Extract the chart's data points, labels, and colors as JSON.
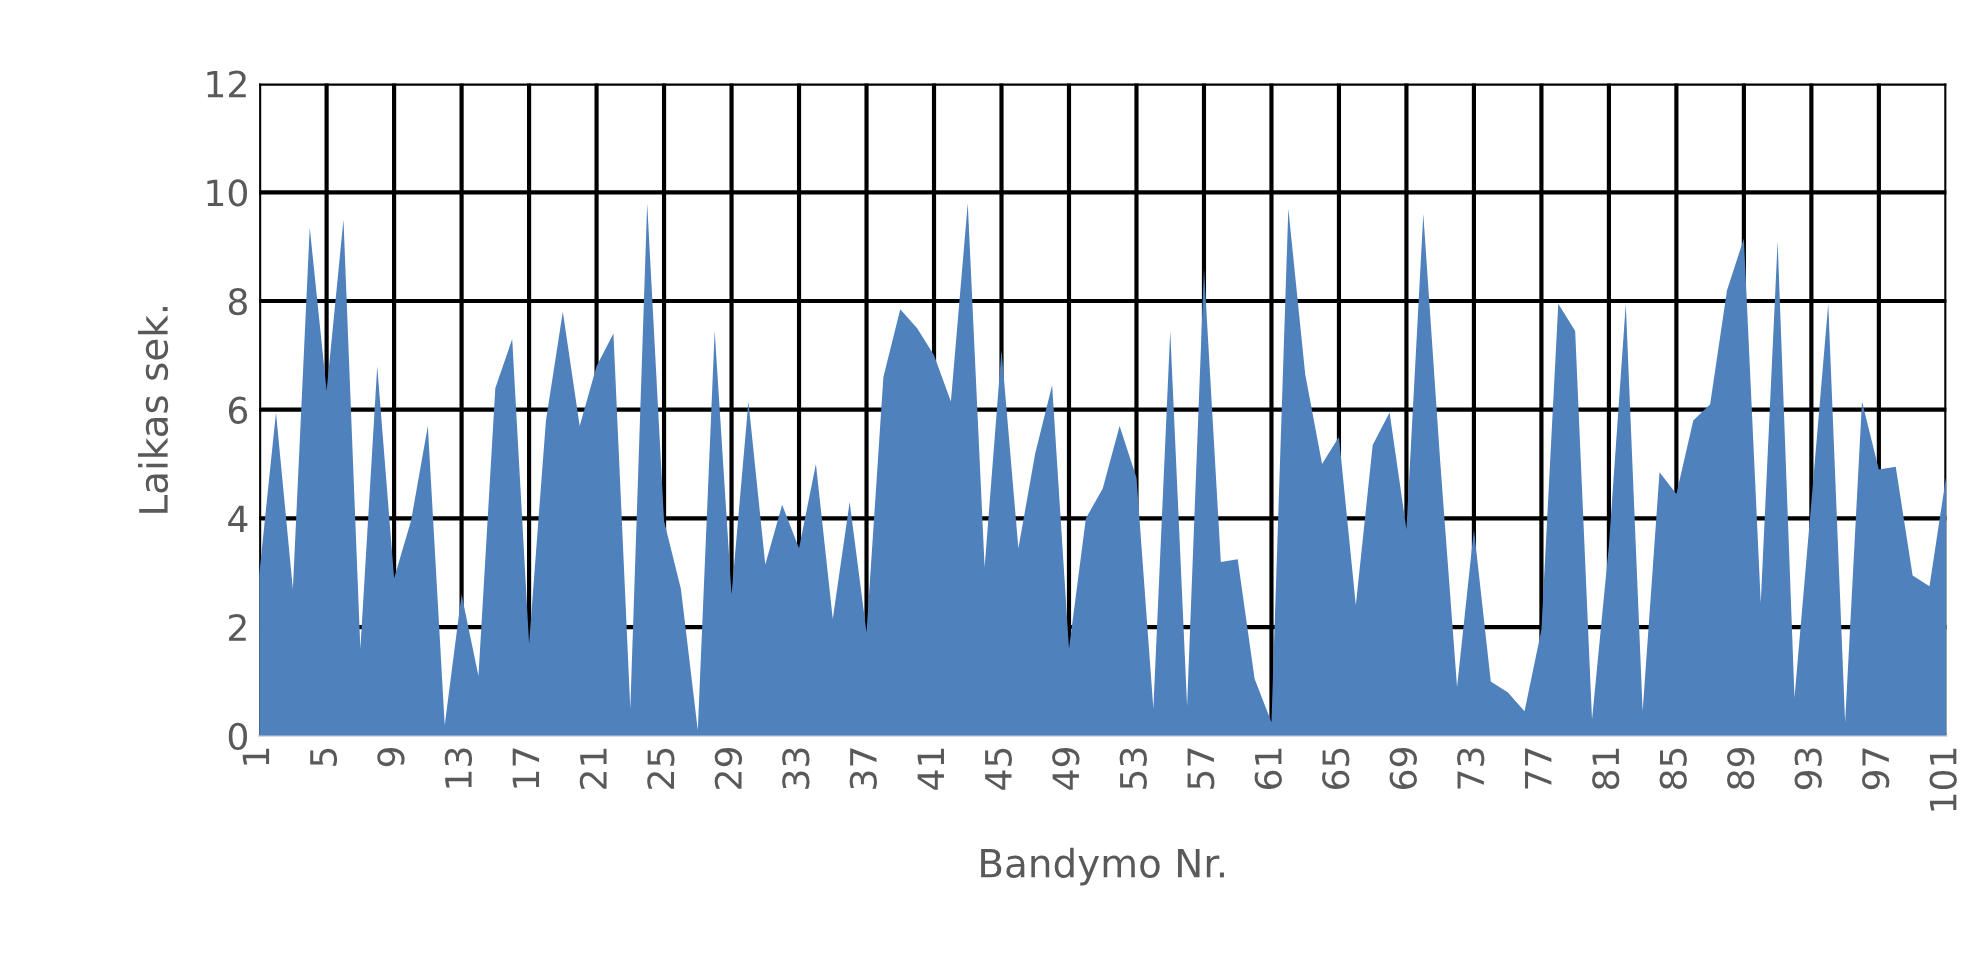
{
  "chart_data": {
    "type": "area",
    "xlabel": "Bandymo Nr.",
    "ylabel": "Laikas sek.",
    "categories": [
      "1",
      null,
      null,
      null,
      "5",
      null,
      null,
      null,
      "9",
      null,
      null,
      null,
      "13",
      null,
      null,
      null,
      "17",
      null,
      null,
      null,
      "21",
      null,
      null,
      null,
      "25",
      null,
      null,
      null,
      "29",
      null,
      null,
      null,
      "33",
      null,
      null,
      null,
      "37",
      null,
      null,
      null,
      "41",
      null,
      null,
      null,
      "45",
      null,
      null,
      null,
      "49",
      null,
      null,
      null,
      "53",
      null,
      null,
      null,
      "57",
      null,
      null,
      null,
      "61",
      null,
      null,
      null,
      "65",
      null,
      null,
      null,
      "69",
      null,
      null,
      null,
      "73",
      null,
      null,
      null,
      "77",
      null,
      null,
      null,
      "81",
      null,
      null,
      null,
      "85",
      null,
      null,
      null,
      "89",
      null,
      null,
      null,
      "93",
      null,
      null,
      null,
      "97",
      null,
      null,
      null,
      "101"
    ],
    "series": [
      {
        "color": "#4f81bd",
        "values": [
          2.95,
          5.95,
          2.7,
          9.35,
          6.35,
          9.5,
          1.6,
          6.8,
          2.9,
          3.95,
          5.7,
          0.2,
          2.6,
          1.1,
          6.4,
          7.3,
          1.7,
          5.8,
          7.8,
          5.7,
          6.8,
          7.4,
          0.5,
          9.8,
          3.95,
          2.7,
          0.1,
          7.45,
          2.6,
          6.15,
          3.15,
          4.25,
          3.45,
          5.0,
          2.15,
          4.3,
          1.9,
          6.6,
          7.85,
          7.5,
          7.0,
          6.15,
          9.8,
          3.1,
          7.1,
          3.45,
          5.2,
          6.45,
          1.6,
          4.0,
          4.55,
          5.7,
          4.75,
          0.5,
          7.45,
          0.55,
          8.6,
          3.2,
          3.25,
          1.05,
          0.25,
          9.7,
          6.65,
          5.0,
          5.5,
          2.4,
          5.35,
          5.95,
          3.8,
          9.6,
          5.05,
          0.9,
          3.8,
          1.0,
          0.8,
          0.45,
          1.95,
          7.95,
          7.45,
          0.3,
          3.5,
          7.95,
          0.45,
          4.85,
          4.45,
          5.8,
          6.1,
          8.2,
          9.15,
          2.45,
          9.1,
          0.7,
          4.3,
          7.95,
          0.25,
          6.15,
          4.9,
          4.95,
          2.95,
          2.75,
          4.8
        ]
      }
    ],
    "ylim": [
      0,
      12
    ],
    "yticks": [
      0,
      2,
      4,
      6,
      8,
      10,
      12
    ],
    "grid": true
  }
}
